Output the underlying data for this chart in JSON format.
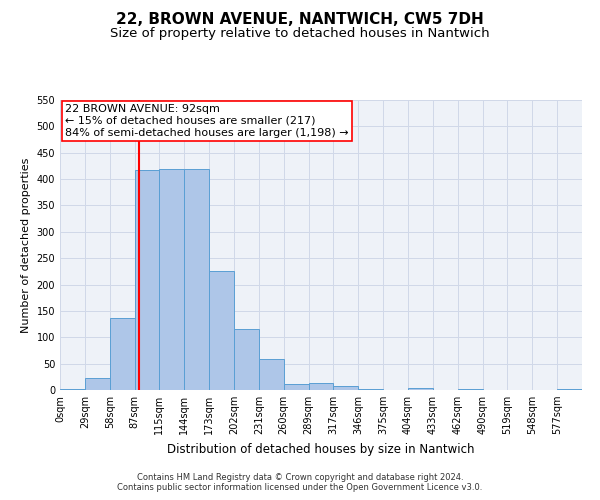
{
  "title1": "22, BROWN AVENUE, NANTWICH, CW5 7DH",
  "title2": "Size of property relative to detached houses in Nantwich",
  "xlabel": "Distribution of detached houses by size in Nantwich",
  "ylabel": "Number of detached properties",
  "footer1": "Contains HM Land Registry data © Crown copyright and database right 2024.",
  "footer2": "Contains public sector information licensed under the Open Government Licence v3.0.",
  "bin_labels": [
    "0sqm",
    "29sqm",
    "58sqm",
    "87sqm",
    "115sqm",
    "144sqm",
    "173sqm",
    "202sqm",
    "231sqm",
    "260sqm",
    "289sqm",
    "317sqm",
    "346sqm",
    "375sqm",
    "404sqm",
    "433sqm",
    "462sqm",
    "490sqm",
    "519sqm",
    "548sqm",
    "577sqm"
  ],
  "bar_values": [
    2,
    22,
    137,
    418,
    420,
    420,
    226,
    116,
    58,
    11,
    14,
    7,
    1,
    0,
    3,
    0,
    2,
    0,
    0,
    0,
    2
  ],
  "bar_color": "#aec6e8",
  "bar_edge_color": "#5a9fd4",
  "property_line_label": "22 BROWN AVENUE: 92sqm",
  "annotation_line1": "← 15% of detached houses are smaller (217)",
  "annotation_line2": "84% of semi-detached houses are larger (1,198) →",
  "ylim": [
    0,
    550
  ],
  "yticks": [
    0,
    50,
    100,
    150,
    200,
    250,
    300,
    350,
    400,
    450,
    500,
    550
  ],
  "grid_color": "#d0d8e8",
  "bg_color": "#eef2f8",
  "title1_fontsize": 11,
  "title2_fontsize": 9.5,
  "annotation_fontsize": 8,
  "ylabel_fontsize": 8,
  "xlabel_fontsize": 8.5,
  "box_edge_color": "red",
  "vline_color": "red",
  "footer_fontsize": 6,
  "tick_fontsize": 7
}
